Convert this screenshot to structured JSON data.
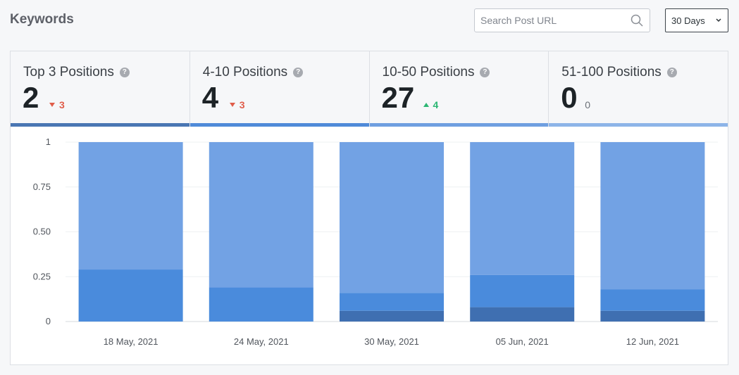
{
  "header": {
    "title": "Keywords",
    "search_placeholder": "Search Post URL",
    "range_value": "30 Days"
  },
  "cards": [
    {
      "label": "Top 3 Positions",
      "count": "2",
      "change": "3",
      "direction": "down",
      "color": "#4a76b3"
    },
    {
      "label": "4-10 Positions",
      "count": "4",
      "change": "3",
      "direction": "down",
      "color": "#4f8ad9"
    },
    {
      "label": "10-50 Positions",
      "count": "27",
      "change": "4",
      "direction": "up",
      "color": "#6f9fe0"
    },
    {
      "label": "51-100 Positions",
      "count": "0",
      "change": "0",
      "direction": "none",
      "color": "#8db4e8"
    }
  ],
  "chart_data": {
    "type": "bar",
    "stacked": true,
    "categories": [
      "18 May, 2021",
      "24 May, 2021",
      "30 May, 2021",
      "05 Jun, 2021",
      "12 Jun, 2021"
    ],
    "series": [
      {
        "color": "#3f6fb1",
        "values": [
          0,
          0,
          0.06,
          0.08,
          0.06
        ]
      },
      {
        "color": "#4a8bdc",
        "values": [
          0.29,
          0.19,
          0.1,
          0.18,
          0.12
        ]
      },
      {
        "color": "#72a2e4",
        "values": [
          0.71,
          0.81,
          0.84,
          0.74,
          0.82
        ]
      }
    ],
    "yticks": [
      "0",
      "0.25",
      "0.50",
      "0.75",
      "1"
    ],
    "ylim": [
      0,
      1
    ],
    "grid": true
  }
}
